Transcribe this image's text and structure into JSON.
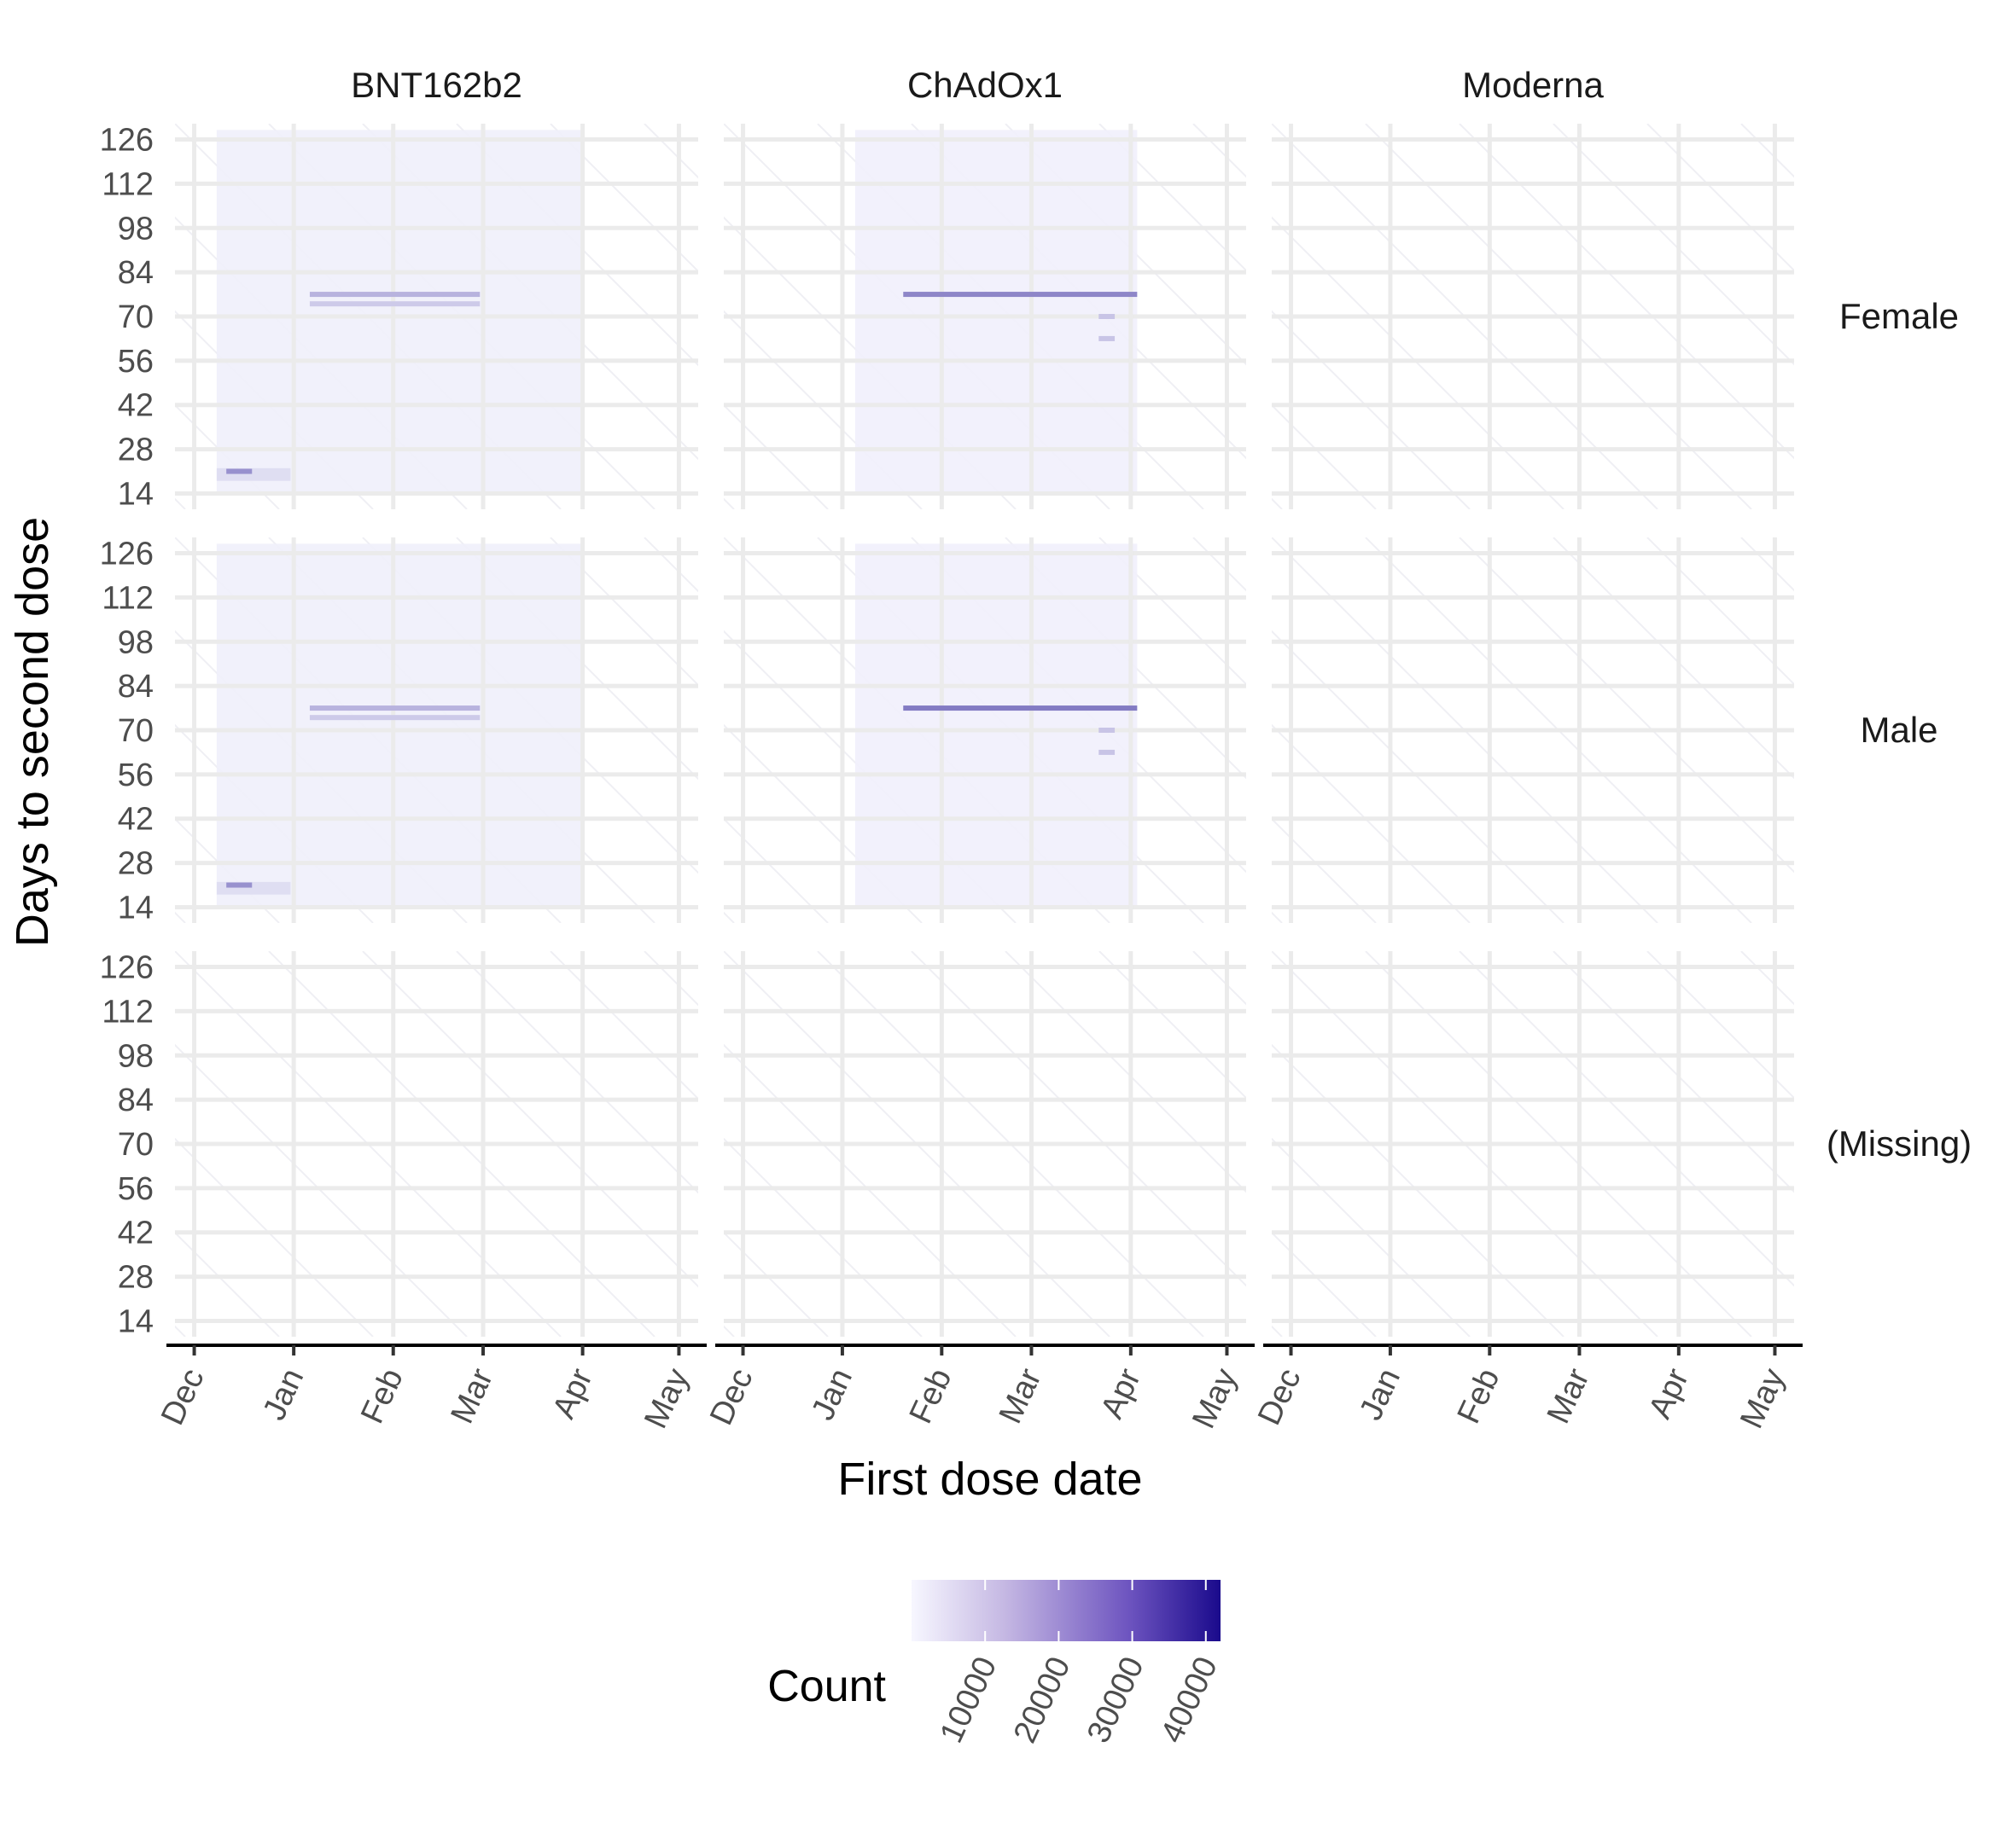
{
  "chart_data": {
    "type": "heatmap",
    "xlabel": "First dose date",
    "ylabel": "Days to second dose",
    "columns": [
      "BNT162b2",
      "ChAdOx1",
      "Moderna"
    ],
    "rows": [
      "Female",
      "Male",
      "(Missing)"
    ],
    "x_ticks": [
      "Dec",
      "Jan",
      "Feb",
      "Mar",
      "Apr",
      "May"
    ],
    "x_tick_dates": [
      "2020-12-01",
      "2021-01-01",
      "2021-02-01",
      "2021-03-01",
      "2021-04-01",
      "2021-05-01"
    ],
    "xlim": [
      "2020-11-25",
      "2021-05-07"
    ],
    "y_ticks": [
      14,
      28,
      42,
      56,
      70,
      84,
      98,
      112,
      126
    ],
    "ylim": [
      9,
      131
    ],
    "legend": {
      "title": "Count",
      "ticks": [
        10000,
        20000,
        30000,
        40000
      ],
      "range": [
        0,
        42000
      ],
      "low_color": "#f7f7ff",
      "high_color": "#1a0a8c",
      "position": "bottom"
    },
    "grid": true,
    "colors": {
      "grid": "#ebebeb",
      "background": "#ffffff"
    },
    "panels": [
      {
        "column": "BNT162b2",
        "row": "Female",
        "background_blocks": [
          {
            "x0": "2020-12-08",
            "x1": "2021-04-01",
            "y0": 14,
            "y1": 129,
            "count": 1500
          },
          {
            "x0": "2020-12-08",
            "x1": "2020-12-31",
            "y0": 18,
            "y1": 22,
            "count": 5000
          }
        ],
        "ridges": [
          {
            "x0": "2020-12-11",
            "x1": "2020-12-19",
            "y": 21,
            "count": 18000
          },
          {
            "x0": "2021-01-06",
            "x1": "2021-02-28",
            "y": 77,
            "count": 12000
          },
          {
            "x0": "2021-01-06",
            "x1": "2021-02-28",
            "y": 74,
            "count": 8000
          }
        ]
      },
      {
        "column": "ChAdOx1",
        "row": "Female",
        "background_blocks": [
          {
            "x0": "2021-01-05",
            "x1": "2021-04-03",
            "y0": 14,
            "y1": 129,
            "count": 1200
          }
        ],
        "ridges": [
          {
            "x0": "2021-01-20",
            "x1": "2021-04-03",
            "y": 77,
            "count": 20000
          },
          {
            "x0": "2021-03-22",
            "x1": "2021-03-27",
            "y": 70,
            "count": 9000
          },
          {
            "x0": "2021-03-22",
            "x1": "2021-03-27",
            "y": 63,
            "count": 9000
          }
        ]
      },
      {
        "column": "Moderna",
        "row": "Female",
        "background_blocks": [],
        "ridges": []
      },
      {
        "column": "BNT162b2",
        "row": "Male",
        "background_blocks": [
          {
            "x0": "2020-12-08",
            "x1": "2021-04-01",
            "y0": 14,
            "y1": 129,
            "count": 1500
          },
          {
            "x0": "2020-12-08",
            "x1": "2020-12-31",
            "y0": 18,
            "y1": 22,
            "count": 5000
          }
        ],
        "ridges": [
          {
            "x0": "2020-12-11",
            "x1": "2020-12-19",
            "y": 21,
            "count": 18000
          },
          {
            "x0": "2021-01-06",
            "x1": "2021-02-28",
            "y": 77,
            "count": 12000
          },
          {
            "x0": "2021-01-06",
            "x1": "2021-02-28",
            "y": 74,
            "count": 8000
          }
        ]
      },
      {
        "column": "ChAdOx1",
        "row": "Male",
        "background_blocks": [
          {
            "x0": "2021-01-05",
            "x1": "2021-04-03",
            "y0": 14,
            "y1": 129,
            "count": 1200
          }
        ],
        "ridges": [
          {
            "x0": "2021-01-20",
            "x1": "2021-04-03",
            "y": 77,
            "count": 22000
          },
          {
            "x0": "2021-03-22",
            "x1": "2021-03-27",
            "y": 70,
            "count": 9000
          },
          {
            "x0": "2021-03-22",
            "x1": "2021-03-27",
            "y": 63,
            "count": 9000
          }
        ]
      },
      {
        "column": "Moderna",
        "row": "Male",
        "background_blocks": [],
        "ridges": []
      },
      {
        "column": "BNT162b2",
        "row": "(Missing)",
        "background_blocks": [],
        "ridges": []
      },
      {
        "column": "ChAdOx1",
        "row": "(Missing)",
        "background_blocks": [],
        "ridges": []
      },
      {
        "column": "Moderna",
        "row": "(Missing)",
        "background_blocks": [],
        "ridges": []
      }
    ]
  }
}
